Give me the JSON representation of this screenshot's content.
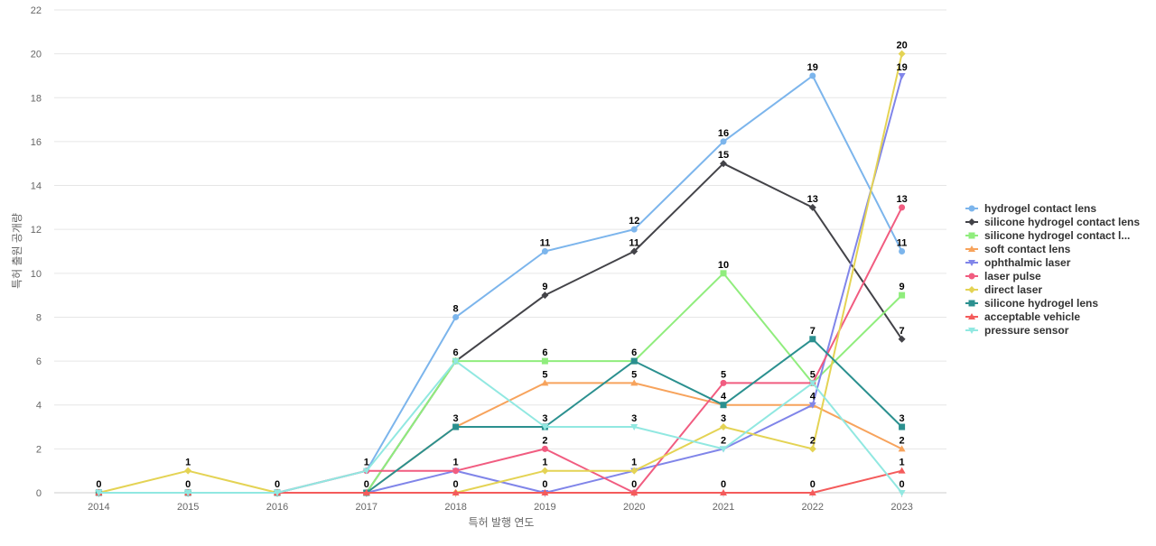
{
  "chart_data": {
    "type": "line",
    "title": "",
    "xlabel": "특허 발행 연도",
    "ylabel": "특허 출원 공개량",
    "x": [
      "2014",
      "2015",
      "2016",
      "2017",
      "2018",
      "2019",
      "2020",
      "2021",
      "2022",
      "2023"
    ],
    "ylim": [
      0,
      22
    ],
    "yticks": [
      0,
      2,
      4,
      6,
      8,
      10,
      12,
      14,
      16,
      18,
      20,
      22
    ],
    "grid": true,
    "legend_position": "right",
    "series": [
      {
        "name": "hydrogel contact lens",
        "color": "#7cb5ec",
        "marker": "circle",
        "values": [
          0,
          0,
          0,
          1,
          8,
          11,
          12,
          16,
          19,
          11
        ]
      },
      {
        "name": "silicone hydrogel contact lens",
        "color": "#434348",
        "marker": "diamond",
        "values": [
          0,
          0,
          0,
          0,
          6,
          9,
          11,
          15,
          13,
          7
        ]
      },
      {
        "name": "silicone hydrogel contact l...",
        "color": "#90ed7d",
        "marker": "square",
        "values": [
          0,
          0,
          0,
          0,
          6,
          6,
          6,
          10,
          5,
          9
        ]
      },
      {
        "name": "soft contact lens",
        "color": "#f7a35c",
        "marker": "triangle",
        "values": [
          0,
          0,
          0,
          0,
          3,
          5,
          5,
          4,
          4,
          2
        ]
      },
      {
        "name": "ophthalmic laser",
        "color": "#8085e9",
        "marker": "triangle-down",
        "values": [
          0,
          0,
          0,
          0,
          1,
          0,
          1,
          2,
          4,
          19
        ]
      },
      {
        "name": "laser pulse",
        "color": "#f15c80",
        "marker": "circle",
        "values": [
          0,
          0,
          0,
          1,
          1,
          2,
          0,
          5,
          5,
          13
        ]
      },
      {
        "name": "direct laser",
        "color": "#e4d354",
        "marker": "diamond",
        "values": [
          0,
          1,
          0,
          0,
          0,
          1,
          1,
          3,
          2,
          20
        ]
      },
      {
        "name": "silicone hydrogel lens",
        "color": "#2b908f",
        "marker": "square",
        "values": [
          0,
          0,
          0,
          0,
          3,
          3,
          6,
          4,
          7,
          3
        ]
      },
      {
        "name": "acceptable vehicle",
        "color": "#f45b5b",
        "marker": "triangle",
        "values": [
          0,
          0,
          0,
          0,
          0,
          0,
          0,
          0,
          0,
          1
        ]
      },
      {
        "name": "pressure sensor",
        "color": "#91e8e1",
        "marker": "triangle-down",
        "values": [
          0,
          0,
          0,
          1,
          6,
          3,
          3,
          2,
          5,
          0
        ]
      }
    ],
    "data_labels": [
      {
        "x": "2014",
        "text": "0"
      },
      {
        "x": "2015",
        "text": "1"
      },
      {
        "x": "2015",
        "text": "0"
      },
      {
        "x": "2016",
        "text": "0"
      },
      {
        "x": "2017",
        "text": "1"
      },
      {
        "x": "2017",
        "text": "0"
      },
      {
        "x": "2018",
        "text": "8"
      },
      {
        "x": "2018",
        "text": "6"
      },
      {
        "x": "2018",
        "text": "3"
      },
      {
        "x": "2018",
        "text": "1"
      },
      {
        "x": "2018",
        "text": "0"
      },
      {
        "x": "2019",
        "text": "11"
      },
      {
        "x": "2019",
        "text": "9"
      },
      {
        "x": "2019",
        "text": "6"
      },
      {
        "x": "2019",
        "text": "5"
      },
      {
        "x": "2019",
        "text": "3"
      },
      {
        "x": "2019",
        "text": "2"
      },
      {
        "x": "2019",
        "text": "1"
      },
      {
        "x": "2019",
        "text": "0"
      },
      {
        "x": "2020",
        "text": "12"
      },
      {
        "x": "2020",
        "text": "11"
      },
      {
        "x": "2020",
        "text": "6"
      },
      {
        "x": "2020",
        "text": "5"
      },
      {
        "x": "2020",
        "text": "3"
      },
      {
        "x": "2020",
        "text": "1"
      },
      {
        "x": "2020",
        "text": "0"
      },
      {
        "x": "2021",
        "text": "16"
      },
      {
        "x": "2021",
        "text": "15"
      },
      {
        "x": "2021",
        "text": "10"
      },
      {
        "x": "2021",
        "text": "5"
      },
      {
        "x": "2021",
        "text": "4"
      },
      {
        "x": "2021",
        "text": "3"
      },
      {
        "x": "2021",
        "text": "2"
      },
      {
        "x": "2021",
        "text": "0"
      },
      {
        "x": "2022",
        "text": "19"
      },
      {
        "x": "2022",
        "text": "13"
      },
      {
        "x": "2022",
        "text": "7"
      },
      {
        "x": "2022",
        "text": "5"
      },
      {
        "x": "2022",
        "text": "4"
      },
      {
        "x": "2022",
        "text": "2"
      },
      {
        "x": "2022",
        "text": "0"
      },
      {
        "x": "2023",
        "text": "20"
      },
      {
        "x": "2023",
        "text": "19"
      },
      {
        "x": "2023",
        "text": "13"
      },
      {
        "x": "2023",
        "text": "11"
      },
      {
        "x": "2023",
        "text": "9"
      },
      {
        "x": "2023",
        "text": "7"
      },
      {
        "x": "2023",
        "text": "3"
      },
      {
        "x": "2023",
        "text": "2"
      },
      {
        "x": "2023",
        "text": "1"
      },
      {
        "x": "2023",
        "text": "0"
      }
    ]
  }
}
